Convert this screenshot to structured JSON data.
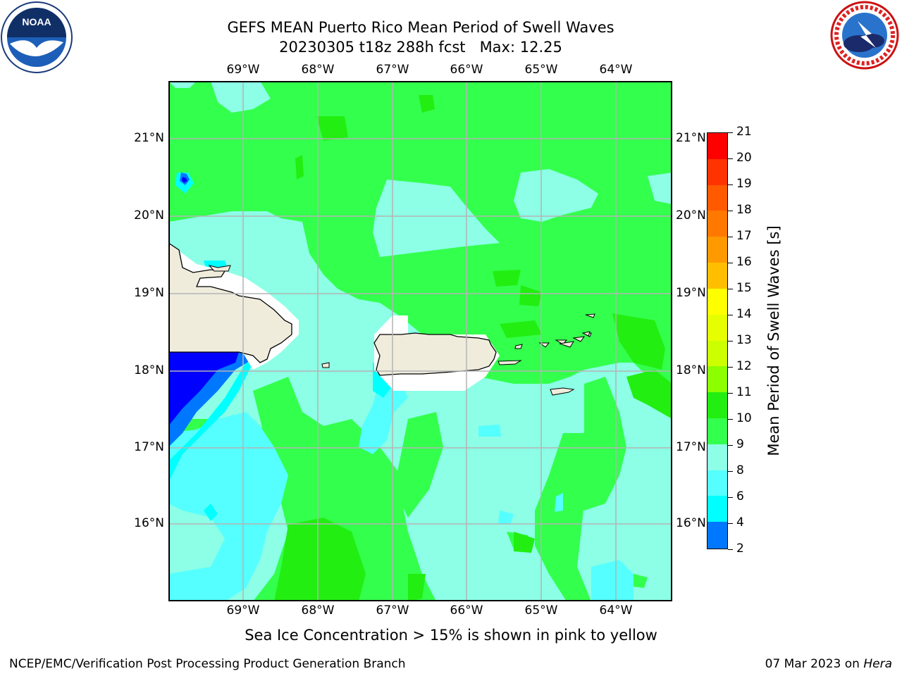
{
  "header": {
    "title_line1": "GEFS MEAN Puerto Rico Mean Period of Swell Waves",
    "title_line2": "20230305 t18z 288h fcst   Max: 12.25"
  },
  "logos": {
    "left": "noaa-logo",
    "right": "nws-logo"
  },
  "map": {
    "lon_labels": [
      "69°W",
      "68°W",
      "67°W",
      "66°W",
      "65°W",
      "64°W"
    ],
    "lat_labels": [
      "21°N",
      "20°N",
      "19°N",
      "18°N",
      "17°N",
      "16°N"
    ],
    "colors": {
      "water_green": "#33ff4d",
      "water_aqua": "#8cffe6",
      "water_cyan": "#55ffff",
      "water_bright_cyan": "#00ffff",
      "water_dark_green": "#22ee11",
      "water_blue": "#0077ff",
      "water_deep_blue": "#0000ff",
      "land": "#efecdc",
      "grid": "#b4b4b4"
    }
  },
  "colorbar": {
    "label": "Mean Period of Swell Waves [s]",
    "ticks": [
      "21",
      "20",
      "19",
      "18",
      "17",
      "16",
      "15",
      "14",
      "13",
      "12",
      "11",
      "10",
      "9",
      "8",
      "6",
      "4",
      "2"
    ],
    "colors": [
      "#ff0000",
      "#ff3300",
      "#ff5a00",
      "#ff7800",
      "#ff9900",
      "#ffbf00",
      "#ffff00",
      "#e6ff00",
      "#ccff00",
      "#8cff00",
      "#22ee11",
      "#33ff4d",
      "#8cffe6",
      "#55ffff",
      "#00ffff",
      "#0077ff",
      "#0000ff"
    ]
  },
  "footer": {
    "note": "Sea Ice Concentration > 15% is shown in pink to yellow",
    "left": "NCEP/EMC/Verification Post Processing Product Generation Branch",
    "right_prefix": "07 Mar 2023 on ",
    "right_machine": "Hera"
  }
}
